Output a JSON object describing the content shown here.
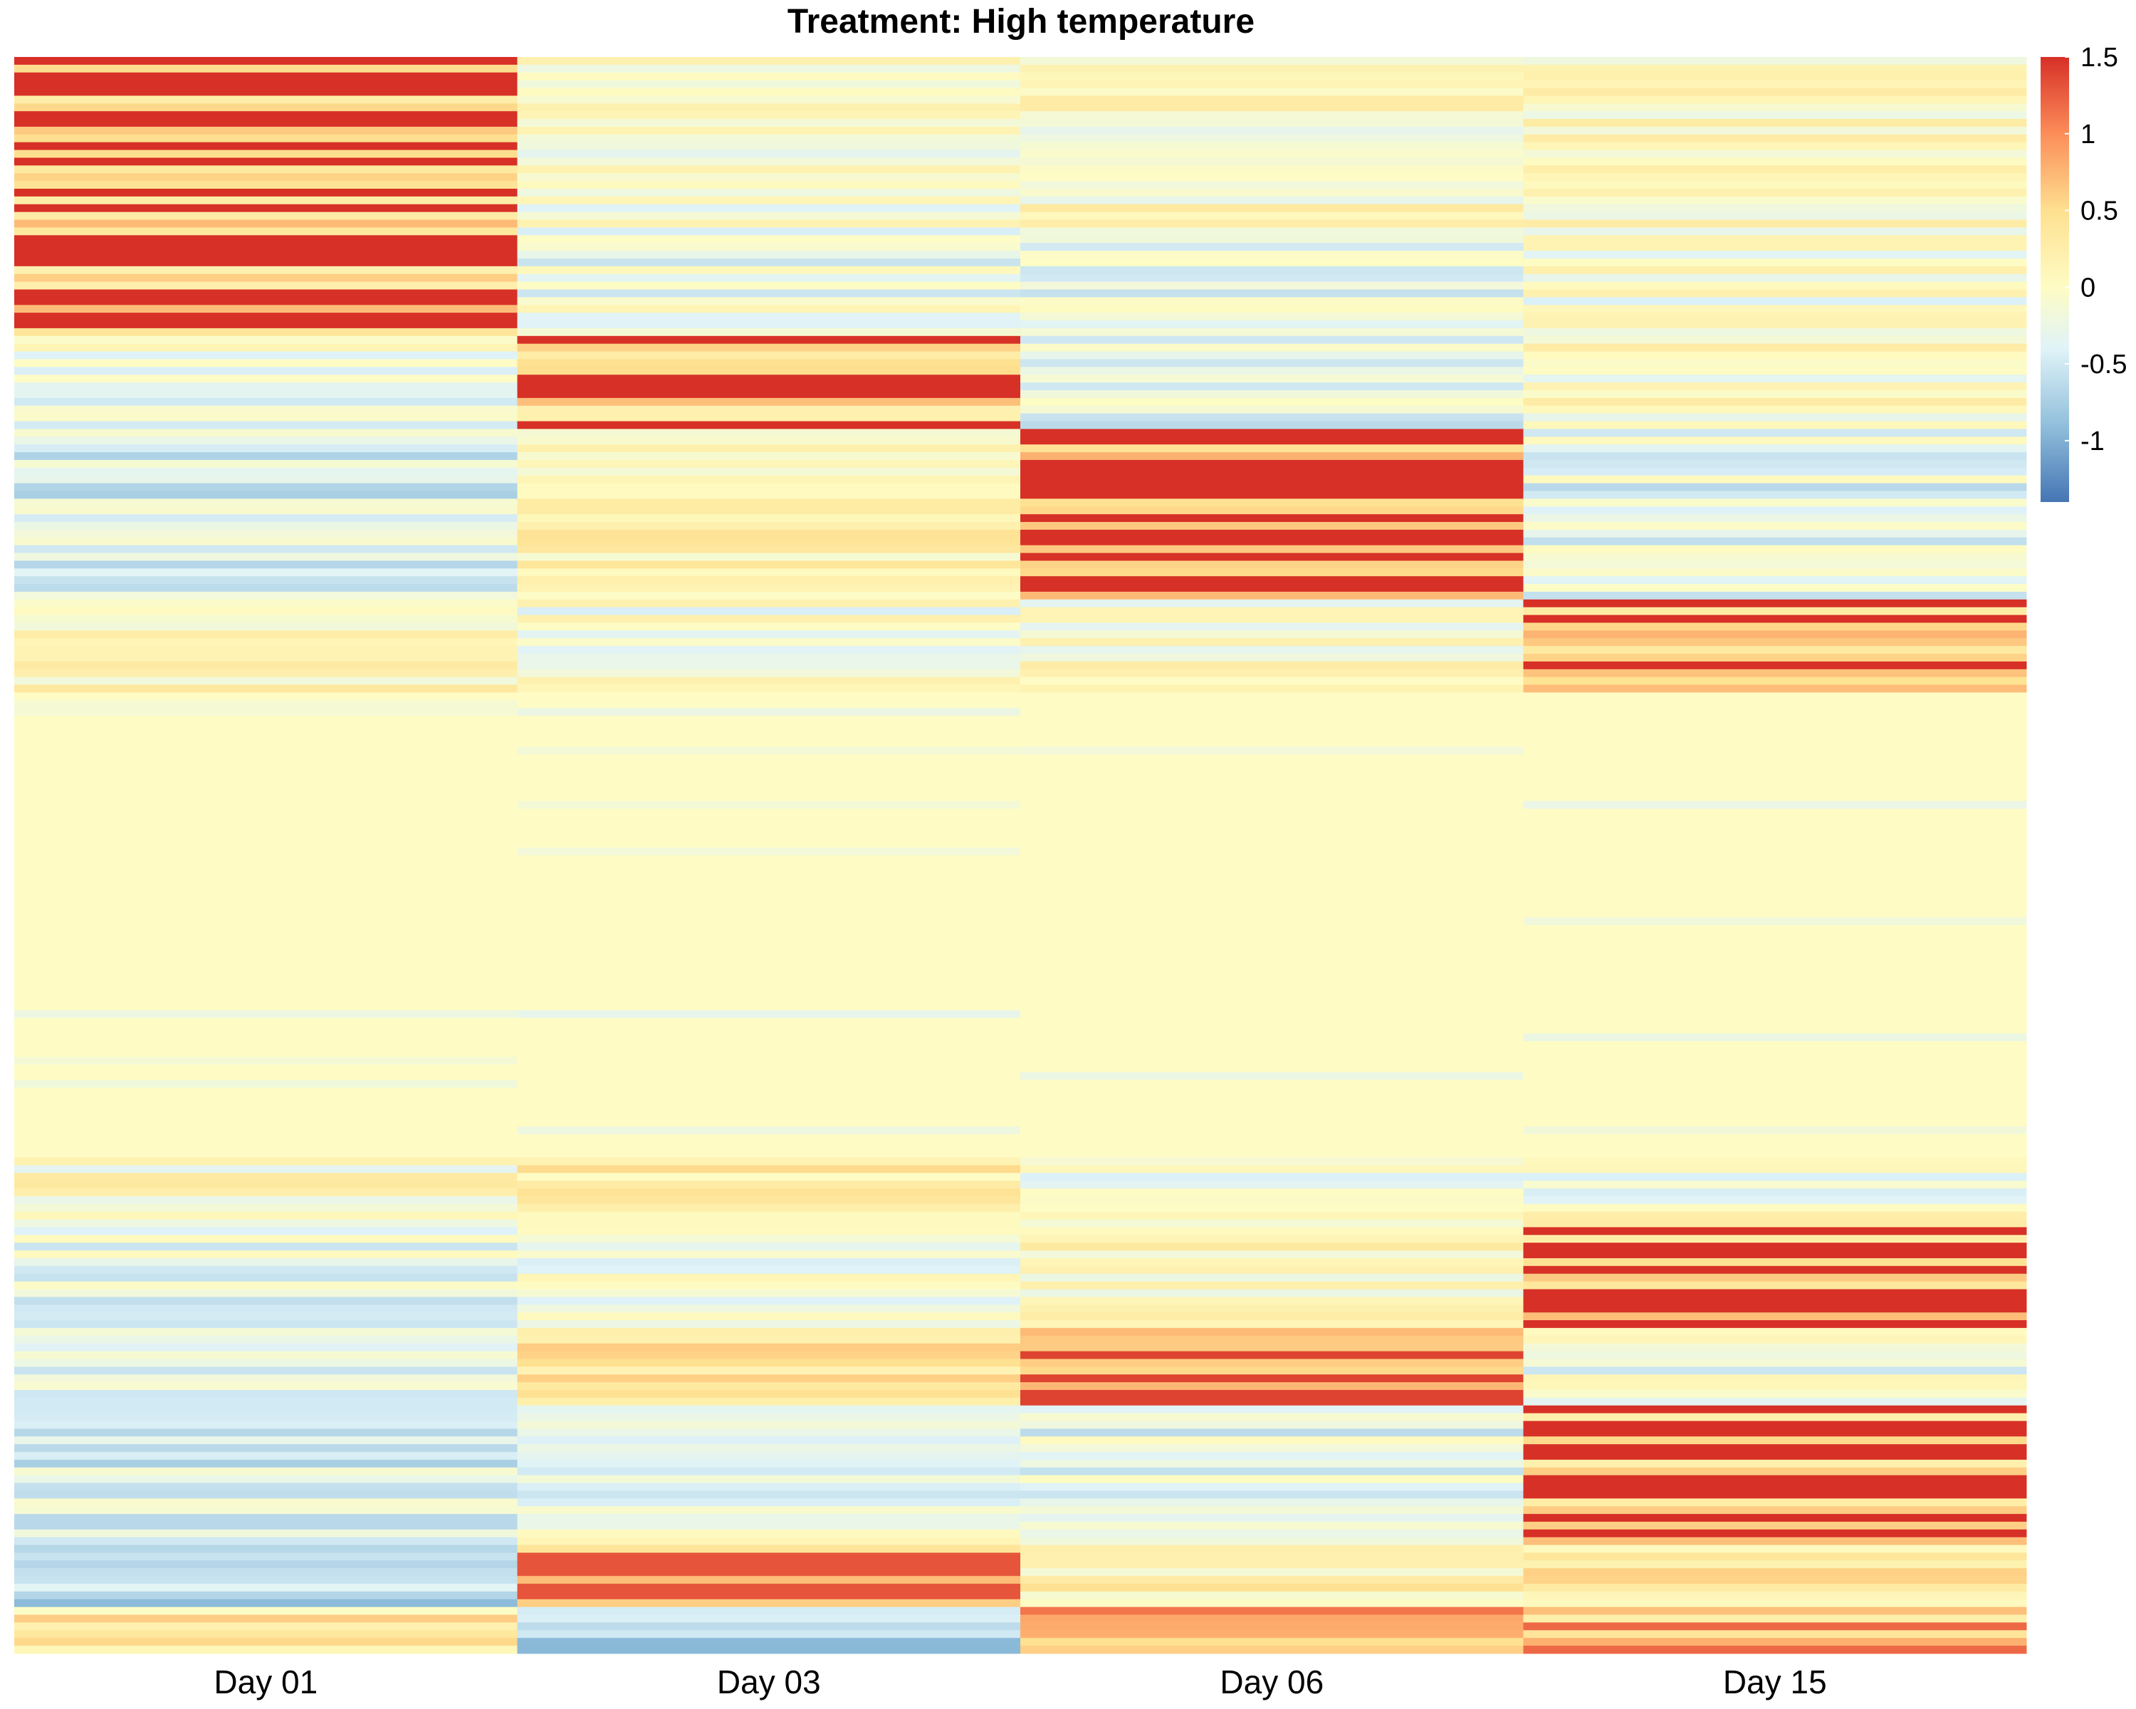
{
  "chart_data": {
    "type": "heatmap",
    "title": "Treatment: High temperature",
    "columns": [
      "Day 01",
      "Day 03",
      "Day 06",
      "Day 15"
    ],
    "color_scale": {
      "min": -1.4,
      "max": 1.5,
      "ticks": [
        1.5,
        1,
        0.5,
        0,
        -0.5,
        -1
      ],
      "tick_labels": [
        "1.5",
        "1",
        "0.5",
        "0",
        "-0.5",
        "-1"
      ],
      "colors": {
        "low": "#4575b4",
        "mid_low": "#91bfdb",
        "pale_blue": "#e0f3f8",
        "mid": "#fefcc4",
        "mid_high": "#fee090",
        "high_orange": "#fc8d59",
        "high": "#d73027"
      }
    },
    "row_groups": [
      {
        "rows": 24,
        "profile": [
          1.5,
          -0.1,
          0.0,
          0.0
        ]
      },
      {
        "rows": 12,
        "profile": [
          1.5,
          -0.2,
          -0.3,
          -0.1
        ]
      },
      {
        "rows": 12,
        "profile": [
          -0.2,
          1.5,
          -0.3,
          0.0
        ]
      },
      {
        "rows": 22,
        "profile": [
          -0.4,
          0.1,
          1.5,
          -0.3
        ]
      },
      {
        "rows": 12,
        "profile": [
          0.1,
          -0.1,
          0.0,
          1.5
        ]
      },
      {
        "rows": 60,
        "profile": [
          0.0,
          0.0,
          0.0,
          0.0
        ]
      },
      {
        "rows": 8,
        "profile": [
          0.0,
          0.3,
          -0.2,
          -0.1
        ]
      },
      {
        "rows": 14,
        "profile": [
          -0.3,
          -0.1,
          0.1,
          1.5
        ]
      },
      {
        "rows": 10,
        "profile": [
          -0.2,
          0.3,
          1.4,
          -0.2
        ]
      },
      {
        "rows": 18,
        "profile": [
          -0.4,
          -0.2,
          -0.3,
          1.5
        ]
      },
      {
        "rows": 8,
        "profile": [
          -0.6,
          1.3,
          0.2,
          0.4
        ]
      },
      {
        "rows": 6,
        "profile": [
          0.3,
          -0.6,
          0.8,
          1.2
        ]
      }
    ]
  }
}
